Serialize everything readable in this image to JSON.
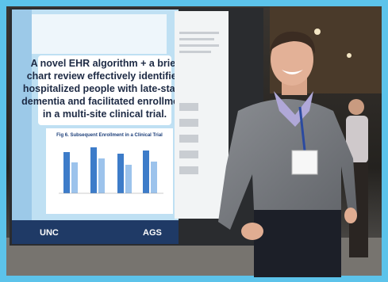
{
  "poster": {
    "headline": [
      "A novel EHR algorithm + a brief",
      "chart review effectively identified",
      "hospitalized people with late-stage",
      "dementia and facilitated enrollment",
      "in a multi-site clinical trial."
    ],
    "figure_title": "Fig 6. Subsequent Enrollment in a Clinical Trial",
    "logo_left": "UNC",
    "logo_right": "AGS"
  }
}
